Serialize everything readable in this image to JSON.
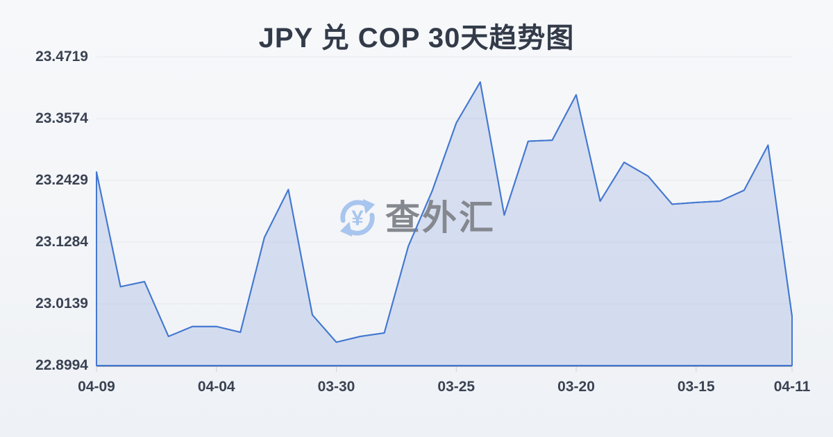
{
  "title": "JPY 兑 COP 30天趋势图",
  "watermark": {
    "icon": "currency-exchange-cycle-icon",
    "symbol": "¥",
    "text": "查外汇"
  },
  "colors": {
    "background": "#f3f5f8",
    "title_text": "#333b49",
    "axis_label_text": "#3a4252",
    "gridline": "#e6e9ee",
    "axis_line": "#3f5279",
    "tick_mark": "#ccd1d9",
    "series_line": "#4478d0",
    "series_fill": "rgba(122,150,216,0.25)",
    "watermark_icon": "#a7c5ee",
    "watermark_text": "#85888f"
  },
  "chart_data": {
    "type": "area",
    "title": "JPY 兑 COP 30天趋势图",
    "xlabel": "",
    "ylabel": "",
    "grid": true,
    "legend": false,
    "ylim": [
      22.8994,
      23.4719
    ],
    "y_tick_labels": [
      "23.4719",
      "23.3574",
      "23.2429",
      "23.1284",
      "23.0139",
      "22.8994"
    ],
    "x_tick_labels": [
      "04-09",
      "04-04",
      "03-30",
      "03-25",
      "03-20",
      "03-15",
      "04-11"
    ],
    "x_tick_indices": [
      0,
      5,
      10,
      15,
      20,
      25,
      29
    ],
    "values": [
      23.2583,
      23.0457,
      23.0551,
      22.9534,
      22.9718,
      22.9718,
      22.9611,
      23.137,
      23.2258,
      22.9933,
      22.9428,
      22.9534,
      22.9599,
      23.1207,
      23.2236,
      23.3493,
      23.4252,
      23.1786,
      23.3154,
      23.3174,
      23.4015,
      23.2043,
      23.2763,
      23.2506,
      23.1987,
      23.2018,
      23.2043,
      23.2245,
      23.3081,
      22.9907
    ]
  }
}
